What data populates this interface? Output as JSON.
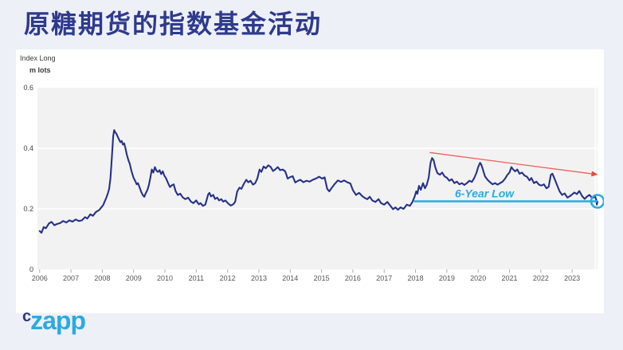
{
  "header": {
    "title": "原糖期货的指数基金活动",
    "title_color": "#2e3a8c"
  },
  "logo": {
    "part1": "c",
    "part2": "zapp",
    "color_c": "#2b3687",
    "color_zapp": "#29abe2"
  },
  "chart_data": {
    "type": "line",
    "title": "原糖期货的指数基金活动",
    "y_axis_header_line1": "Index Long",
    "y_axis_header_line2": "m lots",
    "ylim": [
      0,
      0.6
    ],
    "y_ticks": [
      0,
      0.2,
      0.4,
      0.6
    ],
    "xlim": [
      2005.93,
      2023.81
    ],
    "x_ticks": [
      2006,
      2007,
      2008,
      2009,
      2010,
      2011,
      2012,
      2013,
      2014,
      2015,
      2016,
      2017,
      2018,
      2019,
      2020,
      2021,
      2022,
      2023
    ],
    "grid": "horizontal white gridlines on light-gray panel, legend none",
    "panel_color": "#f2f2f2",
    "gridline_color": "#ffffff",
    "tick_text_color": "#555555",
    "series": [
      {
        "name": "Index Long (m lots)",
        "color": "#263287",
        "points": [
          [
            2006.0,
            0.127
          ],
          [
            2006.06,
            0.121
          ],
          [
            2006.13,
            0.14
          ],
          [
            2006.2,
            0.136
          ],
          [
            2006.3,
            0.152
          ],
          [
            2006.38,
            0.157
          ],
          [
            2006.47,
            0.146
          ],
          [
            2006.55,
            0.15
          ],
          [
            2006.65,
            0.153
          ],
          [
            2006.75,
            0.16
          ],
          [
            2006.85,
            0.155
          ],
          [
            2006.95,
            0.162
          ],
          [
            2007.05,
            0.158
          ],
          [
            2007.15,
            0.165
          ],
          [
            2007.25,
            0.16
          ],
          [
            2007.35,
            0.162
          ],
          [
            2007.45,
            0.173
          ],
          [
            2007.52,
            0.168
          ],
          [
            2007.62,
            0.182
          ],
          [
            2007.7,
            0.177
          ],
          [
            2007.8,
            0.19
          ],
          [
            2007.9,
            0.196
          ],
          [
            2007.97,
            0.205
          ],
          [
            2008.03,
            0.213
          ],
          [
            2008.08,
            0.225
          ],
          [
            2008.13,
            0.237
          ],
          [
            2008.18,
            0.252
          ],
          [
            2008.22,
            0.266
          ],
          [
            2008.26,
            0.3
          ],
          [
            2008.29,
            0.345
          ],
          [
            2008.32,
            0.395
          ],
          [
            2008.35,
            0.44
          ],
          [
            2008.38,
            0.46
          ],
          [
            2008.42,
            0.452
          ],
          [
            2008.45,
            0.448
          ],
          [
            2008.5,
            0.437
          ],
          [
            2008.54,
            0.428
          ],
          [
            2008.58,
            0.42
          ],
          [
            2008.62,
            0.424
          ],
          [
            2008.66,
            0.412
          ],
          [
            2008.7,
            0.416
          ],
          [
            2008.74,
            0.4
          ],
          [
            2008.78,
            0.38
          ],
          [
            2008.83,
            0.362
          ],
          [
            2008.88,
            0.348
          ],
          [
            2008.93,
            0.325
          ],
          [
            2009.0,
            0.302
          ],
          [
            2009.05,
            0.292
          ],
          [
            2009.1,
            0.281
          ],
          [
            2009.14,
            0.285
          ],
          [
            2009.19,
            0.271
          ],
          [
            2009.24,
            0.257
          ],
          [
            2009.29,
            0.246
          ],
          [
            2009.34,
            0.24
          ],
          [
            2009.39,
            0.252
          ],
          [
            2009.44,
            0.262
          ],
          [
            2009.49,
            0.28
          ],
          [
            2009.54,
            0.305
          ],
          [
            2009.58,
            0.33
          ],
          [
            2009.63,
            0.32
          ],
          [
            2009.68,
            0.338
          ],
          [
            2009.73,
            0.326
          ],
          [
            2009.78,
            0.322
          ],
          [
            2009.83,
            0.328
          ],
          [
            2009.88,
            0.315
          ],
          [
            2009.93,
            0.324
          ],
          [
            2009.98,
            0.31
          ],
          [
            2010.03,
            0.302
          ],
          [
            2010.1,
            0.285
          ],
          [
            2010.16,
            0.272
          ],
          [
            2010.22,
            0.278
          ],
          [
            2010.28,
            0.281
          ],
          [
            2010.34,
            0.259
          ],
          [
            2010.41,
            0.246
          ],
          [
            2010.49,
            0.25
          ],
          [
            2010.57,
            0.238
          ],
          [
            2010.65,
            0.232
          ],
          [
            2010.74,
            0.237
          ],
          [
            2010.83,
            0.224
          ],
          [
            2010.91,
            0.219
          ],
          [
            2011.0,
            0.228
          ],
          [
            2011.08,
            0.215
          ],
          [
            2011.14,
            0.219
          ],
          [
            2011.21,
            0.21
          ],
          [
            2011.29,
            0.214
          ],
          [
            2011.38,
            0.248
          ],
          [
            2011.42,
            0.253
          ],
          [
            2011.47,
            0.241
          ],
          [
            2011.54,
            0.246
          ],
          [
            2011.6,
            0.233
          ],
          [
            2011.67,
            0.237
          ],
          [
            2011.73,
            0.228
          ],
          [
            2011.8,
            0.232
          ],
          [
            2011.86,
            0.224
          ],
          [
            2011.93,
            0.228
          ],
          [
            2012.02,
            0.218
          ],
          [
            2012.1,
            0.211
          ],
          [
            2012.18,
            0.215
          ],
          [
            2012.24,
            0.223
          ],
          [
            2012.31,
            0.258
          ],
          [
            2012.38,
            0.27
          ],
          [
            2012.44,
            0.266
          ],
          [
            2012.52,
            0.283
          ],
          [
            2012.6,
            0.296
          ],
          [
            2012.66,
            0.288
          ],
          [
            2012.73,
            0.293
          ],
          [
            2012.81,
            0.28
          ],
          [
            2012.88,
            0.285
          ],
          [
            2012.95,
            0.3
          ],
          [
            2013.02,
            0.33
          ],
          [
            2013.08,
            0.322
          ],
          [
            2013.15,
            0.34
          ],
          [
            2013.22,
            0.334
          ],
          [
            2013.3,
            0.344
          ],
          [
            2013.38,
            0.338
          ],
          [
            2013.45,
            0.325
          ],
          [
            2013.52,
            0.33
          ],
          [
            2013.6,
            0.338
          ],
          [
            2013.68,
            0.328
          ],
          [
            2013.76,
            0.33
          ],
          [
            2013.84,
            0.324
          ],
          [
            2013.92,
            0.3
          ],
          [
            2014.0,
            0.305
          ],
          [
            2014.08,
            0.308
          ],
          [
            2014.16,
            0.287
          ],
          [
            2014.24,
            0.292
          ],
          [
            2014.32,
            0.296
          ],
          [
            2014.42,
            0.288
          ],
          [
            2014.52,
            0.293
          ],
          [
            2014.62,
            0.29
          ],
          [
            2014.72,
            0.296
          ],
          [
            2014.82,
            0.3
          ],
          [
            2014.92,
            0.306
          ],
          [
            2015.02,
            0.3
          ],
          [
            2015.1,
            0.304
          ],
          [
            2015.18,
            0.266
          ],
          [
            2015.25,
            0.258
          ],
          [
            2015.33,
            0.27
          ],
          [
            2015.42,
            0.282
          ],
          [
            2015.52,
            0.294
          ],
          [
            2015.62,
            0.289
          ],
          [
            2015.72,
            0.294
          ],
          [
            2015.82,
            0.288
          ],
          [
            2015.92,
            0.284
          ],
          [
            2016.0,
            0.262
          ],
          [
            2016.1,
            0.246
          ],
          [
            2016.2,
            0.253
          ],
          [
            2016.3,
            0.242
          ],
          [
            2016.38,
            0.236
          ],
          [
            2016.46,
            0.232
          ],
          [
            2016.54,
            0.24
          ],
          [
            2016.62,
            0.228
          ],
          [
            2016.72,
            0.223
          ],
          [
            2016.82,
            0.232
          ],
          [
            2016.9,
            0.219
          ],
          [
            2017.0,
            0.214
          ],
          [
            2017.1,
            0.223
          ],
          [
            2017.2,
            0.21
          ],
          [
            2017.28,
            0.199
          ],
          [
            2017.36,
            0.205
          ],
          [
            2017.44,
            0.197
          ],
          [
            2017.52,
            0.205
          ],
          [
            2017.62,
            0.2
          ],
          [
            2017.72,
            0.214
          ],
          [
            2017.82,
            0.21
          ],
          [
            2017.9,
            0.222
          ],
          [
            2017.97,
            0.24
          ],
          [
            2018.02,
            0.258
          ],
          [
            2018.06,
            0.25
          ],
          [
            2018.11,
            0.276
          ],
          [
            2018.17,
            0.263
          ],
          [
            2018.24,
            0.285
          ],
          [
            2018.3,
            0.268
          ],
          [
            2018.36,
            0.28
          ],
          [
            2018.42,
            0.303
          ],
          [
            2018.48,
            0.352
          ],
          [
            2018.53,
            0.368
          ],
          [
            2018.58,
            0.36
          ],
          [
            2018.63,
            0.338
          ],
          [
            2018.7,
            0.318
          ],
          [
            2018.78,
            0.313
          ],
          [
            2018.85,
            0.32
          ],
          [
            2018.93,
            0.307
          ],
          [
            2019.0,
            0.303
          ],
          [
            2019.08,
            0.293
          ],
          [
            2019.16,
            0.298
          ],
          [
            2019.24,
            0.285
          ],
          [
            2019.32,
            0.29
          ],
          [
            2019.4,
            0.281
          ],
          [
            2019.48,
            0.285
          ],
          [
            2019.56,
            0.279
          ],
          [
            2019.64,
            0.285
          ],
          [
            2019.72,
            0.293
          ],
          [
            2019.8,
            0.289
          ],
          [
            2019.88,
            0.303
          ],
          [
            2019.95,
            0.32
          ],
          [
            2020.0,
            0.338
          ],
          [
            2020.06,
            0.352
          ],
          [
            2020.1,
            0.346
          ],
          [
            2020.15,
            0.33
          ],
          [
            2020.22,
            0.307
          ],
          [
            2020.3,
            0.296
          ],
          [
            2020.38,
            0.288
          ],
          [
            2020.46,
            0.281
          ],
          [
            2020.54,
            0.285
          ],
          [
            2020.62,
            0.28
          ],
          [
            2020.7,
            0.285
          ],
          [
            2020.78,
            0.29
          ],
          [
            2020.86,
            0.3
          ],
          [
            2020.93,
            0.312
          ],
          [
            2021.0,
            0.32
          ],
          [
            2021.06,
            0.338
          ],
          [
            2021.12,
            0.33
          ],
          [
            2021.18,
            0.324
          ],
          [
            2021.25,
            0.33
          ],
          [
            2021.32,
            0.316
          ],
          [
            2021.4,
            0.32
          ],
          [
            2021.48,
            0.31
          ],
          [
            2021.56,
            0.306
          ],
          [
            2021.64,
            0.294
          ],
          [
            2021.7,
            0.302
          ],
          [
            2021.78,
            0.285
          ],
          [
            2021.86,
            0.29
          ],
          [
            2021.94,
            0.28
          ],
          [
            2022.02,
            0.277
          ],
          [
            2022.1,
            0.281
          ],
          [
            2022.18,
            0.268
          ],
          [
            2022.25,
            0.273
          ],
          [
            2022.32,
            0.312
          ],
          [
            2022.37,
            0.316
          ],
          [
            2022.43,
            0.302
          ],
          [
            2022.52,
            0.278
          ],
          [
            2022.6,
            0.258
          ],
          [
            2022.68,
            0.246
          ],
          [
            2022.76,
            0.251
          ],
          [
            2022.85,
            0.237
          ],
          [
            2022.93,
            0.242
          ],
          [
            2023.0,
            0.248
          ],
          [
            2023.07,
            0.254
          ],
          [
            2023.15,
            0.249
          ],
          [
            2023.23,
            0.259
          ],
          [
            2023.32,
            0.242
          ],
          [
            2023.4,
            0.233
          ],
          [
            2023.48,
            0.241
          ],
          [
            2023.55,
            0.246
          ],
          [
            2023.62,
            0.239
          ],
          [
            2023.68,
            0.237
          ],
          [
            2023.73,
            0.242
          ],
          [
            2023.77,
            0.23
          ],
          [
            2023.79,
            0.214
          ],
          [
            2023.81,
            0.224
          ]
        ]
      }
    ],
    "annotations": {
      "six_year_low": {
        "label": "6-Year Low",
        "value": 0.225,
        "x_start": 2017.95,
        "x_end": 2023.81,
        "label_x": 2020.2,
        "color": "#29abe2"
      },
      "trend_arrow": {
        "from": [
          2018.45,
          0.386
        ],
        "to": [
          2023.62,
          0.316
        ],
        "color": "#f0453e"
      },
      "end_circle": {
        "x": 2023.81,
        "value": 0.225,
        "radius_px": 8,
        "color": "#29abe2"
      }
    }
  }
}
